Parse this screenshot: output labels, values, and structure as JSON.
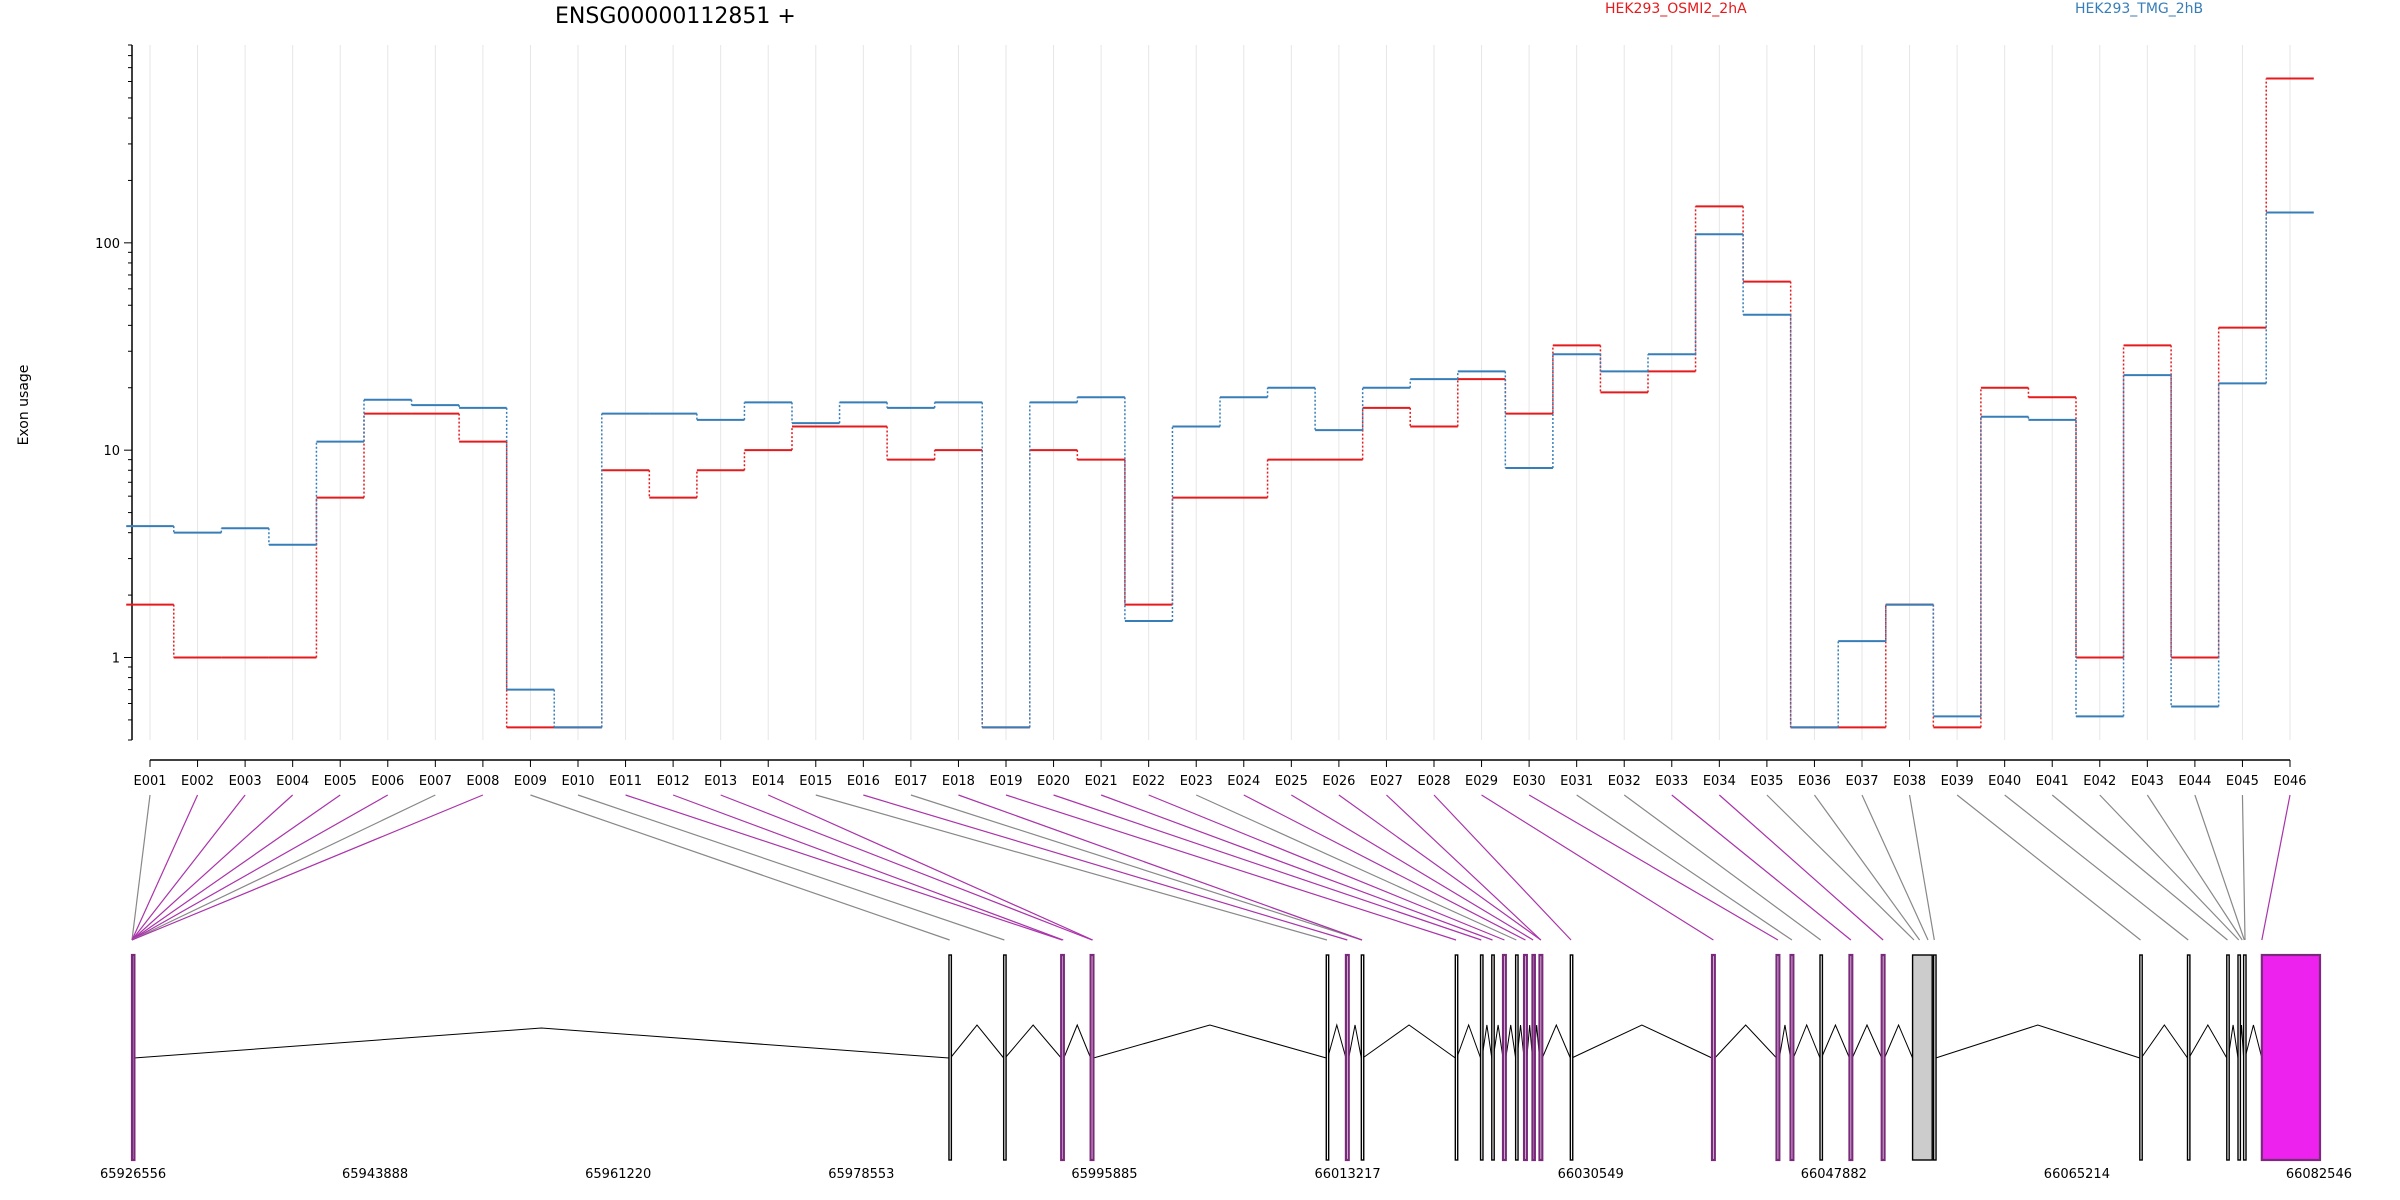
{
  "chart_data": {
    "type": "line",
    "title": "ENSG00000112851 +",
    "ylabel": "Exon usage",
    "y_scale": "log",
    "ylim": [
      0.4,
      900
    ],
    "yticks": [
      "1",
      "10",
      "100"
    ],
    "grid": "vertical lines at exons",
    "legend_position": "top",
    "categories": [
      "E001",
      "E002",
      "E003",
      "E004",
      "E005",
      "E006",
      "E007",
      "E008",
      "E009",
      "E010",
      "E011",
      "E012",
      "E013",
      "E014",
      "E015",
      "E016",
      "E017",
      "E018",
      "E019",
      "E020",
      "E021",
      "E022",
      "E023",
      "E024",
      "E025",
      "E026",
      "E027",
      "E028",
      "E029",
      "E030",
      "E031",
      "E032",
      "E033",
      "E034",
      "E035",
      "E036",
      "E037",
      "E038",
      "E039",
      "E040",
      "E041",
      "E042",
      "E043",
      "E044",
      "E045",
      "E046"
    ],
    "series": [
      {
        "name": "HEK293_OSMI2_2hA",
        "color": "#e41a1c",
        "values": [
          1.8,
          1.0,
          1.0,
          1.0,
          5.9,
          15.0,
          15.0,
          11.0,
          0.46,
          0.46,
          8.0,
          5.9,
          8.0,
          10.0,
          13.0,
          13.0,
          9.0,
          10.0,
          0.46,
          10.0,
          9.0,
          1.8,
          5.9,
          5.9,
          9.0,
          9.0,
          16.0,
          13.0,
          22.0,
          15.0,
          32.0,
          19.0,
          24.0,
          150.0,
          65.0,
          0.46,
          0.46,
          1.8,
          0.46,
          20.0,
          18.0,
          1.0,
          32.0,
          1.0,
          39.0,
          620.0
        ]
      },
      {
        "name": "HEK293_TMG_2hB",
        "color": "#377eb8",
        "values": [
          4.3,
          4.0,
          4.2,
          3.5,
          11.0,
          17.5,
          16.5,
          16.0,
          0.7,
          0.46,
          15.0,
          15.0,
          14.0,
          17.0,
          13.5,
          17.0,
          16.0,
          17.0,
          0.46,
          17.0,
          18.0,
          1.5,
          13.0,
          18.0,
          20.0,
          12.5,
          20.0,
          22.0,
          24.0,
          8.2,
          29.0,
          24.0,
          29.0,
          110.0,
          45.0,
          0.46,
          1.2,
          1.8,
          0.52,
          14.5,
          14.0,
          0.52,
          23.0,
          0.58,
          21.0,
          140.0
        ]
      }
    ],
    "genome_axis": {
      "ticks": [
        "65926556",
        "65943888",
        "65961220",
        "65978553",
        "65995885",
        "66013217",
        "66030549",
        "66047882",
        "66065214",
        "66082546"
      ]
    }
  },
  "gene_model": {
    "highlight_color": "#ee22ee",
    "intron_color": "#000000",
    "exons": [
      {
        "start": 65926556,
        "end": 65926680,
        "highlight": true
      },
      {
        "start": 65984800,
        "end": 65984900,
        "highlight": false
      },
      {
        "start": 65988700,
        "end": 65988800,
        "highlight": false
      },
      {
        "start": 65992800,
        "end": 65992990,
        "highlight": true
      },
      {
        "start": 65994900,
        "end": 65995100,
        "highlight": true
      },
      {
        "start": 66011700,
        "end": 66011800,
        "highlight": false
      },
      {
        "start": 66013100,
        "end": 66013300,
        "highlight": true
      },
      {
        "start": 66014200,
        "end": 66014300,
        "highlight": false
      },
      {
        "start": 66020900,
        "end": 66021000,
        "highlight": false
      },
      {
        "start": 66022700,
        "end": 66022800,
        "highlight": false
      },
      {
        "start": 66023500,
        "end": 66023600,
        "highlight": false
      },
      {
        "start": 66024300,
        "end": 66024500,
        "highlight": true
      },
      {
        "start": 66025200,
        "end": 66025300,
        "highlight": false
      },
      {
        "start": 66025800,
        "end": 66026000,
        "highlight": true
      },
      {
        "start": 66026400,
        "end": 66026500,
        "highlight": true
      },
      {
        "start": 66026900,
        "end": 66027100,
        "highlight": true
      },
      {
        "start": 66029100,
        "end": 66029200,
        "highlight": false
      },
      {
        "start": 66039200,
        "end": 66039400,
        "highlight": true
      },
      {
        "start": 66043800,
        "end": 66044000,
        "highlight": true
      },
      {
        "start": 66044800,
        "end": 66045000,
        "highlight": true
      },
      {
        "start": 66046900,
        "end": 66047000,
        "highlight": false
      },
      {
        "start": 66049000,
        "end": 66049200,
        "highlight": true
      },
      {
        "start": 66051300,
        "end": 66051500,
        "highlight": true
      },
      {
        "start": 66053500,
        "end": 66054900,
        "highlight": false,
        "filled": true
      },
      {
        "start": 66055000,
        "end": 66055150,
        "highlight": false
      },
      {
        "start": 66069700,
        "end": 66069800,
        "highlight": false
      },
      {
        "start": 66073100,
        "end": 66073200,
        "highlight": false
      },
      {
        "start": 66075900,
        "end": 66076000,
        "highlight": false
      },
      {
        "start": 66076700,
        "end": 66076800,
        "highlight": false
      },
      {
        "start": 66077100,
        "end": 66077200,
        "highlight": false
      },
      {
        "start": 66078400,
        "end": 66082546,
        "highlight": true,
        "filled": true
      }
    ],
    "links": [
      {
        "from": 0,
        "to": 65926556,
        "highlight": false
      },
      {
        "from": 1,
        "to": 65926556,
        "highlight": true
      },
      {
        "from": 2,
        "to": 65926556,
        "highlight": true
      },
      {
        "from": 3,
        "to": 65926556,
        "highlight": true
      },
      {
        "from": 4,
        "to": 65926556,
        "highlight": true
      },
      {
        "from": 5,
        "to": 65926556,
        "highlight": true
      },
      {
        "from": 6,
        "to": 65926556,
        "highlight": false
      },
      {
        "from": 7,
        "to": 65926556,
        "highlight": true
      },
      {
        "from": 8,
        "to": 65984850,
        "highlight": false
      },
      {
        "from": 9,
        "to": 65988750,
        "highlight": false
      },
      {
        "from": 10,
        "to": 65992880,
        "highlight": true
      },
      {
        "from": 11,
        "to": 65992950,
        "highlight": true
      },
      {
        "from": 12,
        "to": 65995000,
        "highlight": true
      },
      {
        "from": 13,
        "to": 65995050,
        "highlight": true
      },
      {
        "from": 14,
        "to": 66011750,
        "highlight": false
      },
      {
        "from": 15,
        "to": 66013200,
        "highlight": true
      },
      {
        "from": 16,
        "to": 66014250,
        "highlight": false
      },
      {
        "from": 17,
        "to": 66014250,
        "highlight": true
      },
      {
        "from": 18,
        "to": 66020950,
        "highlight": true
      },
      {
        "from": 19,
        "to": 66022750,
        "highlight": true
      },
      {
        "from": 20,
        "to": 66023550,
        "highlight": true
      },
      {
        "from": 21,
        "to": 66024400,
        "highlight": true
      },
      {
        "from": 22,
        "to": 66025250,
        "highlight": false
      },
      {
        "from": 23,
        "to": 66025900,
        "highlight": true
      },
      {
        "from": 24,
        "to": 66026450,
        "highlight": true
      },
      {
        "from": 25,
        "to": 66027000,
        "highlight": true
      },
      {
        "from": 26,
        "to": 66027000,
        "highlight": true
      },
      {
        "from": 27,
        "to": 66029150,
        "highlight": true
      },
      {
        "from": 28,
        "to": 66039300,
        "highlight": true
      },
      {
        "from": 29,
        "to": 66043900,
        "highlight": true
      },
      {
        "from": 30,
        "to": 66044900,
        "highlight": false
      },
      {
        "from": 31,
        "to": 66046950,
        "highlight": false
      },
      {
        "from": 32,
        "to": 66049100,
        "highlight": true
      },
      {
        "from": 33,
        "to": 66051400,
        "highlight": true
      },
      {
        "from": 34,
        "to": 66053600,
        "highlight": false
      },
      {
        "from": 35,
        "to": 66054000,
        "highlight": false
      },
      {
        "from": 36,
        "to": 66054600,
        "highlight": false
      },
      {
        "from": 37,
        "to": 66055050,
        "highlight": false
      },
      {
        "from": 38,
        "to": 66069750,
        "highlight": false
      },
      {
        "from": 39,
        "to": 66073150,
        "highlight": false
      },
      {
        "from": 40,
        "to": 66075950,
        "highlight": false
      },
      {
        "from": 41,
        "to": 66076750,
        "highlight": false
      },
      {
        "from": 42,
        "to": 66077000,
        "highlight": false
      },
      {
        "from": 43,
        "to": 66077150,
        "highlight": false
      },
      {
        "from": 44,
        "to": 66077200,
        "highlight": false
      },
      {
        "from": 45,
        "to": 66078400,
        "highlight": true
      }
    ]
  }
}
